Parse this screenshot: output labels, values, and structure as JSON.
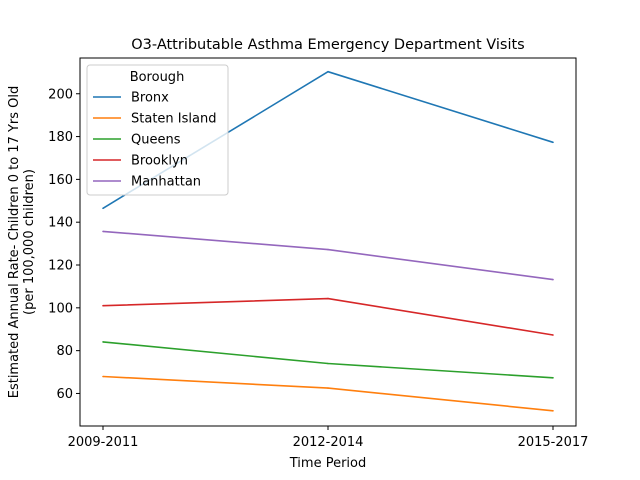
{
  "chart_data": {
    "type": "line",
    "title": "O3-Attributable Asthma Emergency Department Visits",
    "xlabel": "Time Period",
    "ylabel_line1": "Estimated Annual Rate- Children 0 to 17 Yrs Old",
    "ylabel_line2": "(per 100,000 children)",
    "categories": [
      "2009-2011",
      "2012-2014",
      "2015-2017"
    ],
    "yticks": [
      60,
      80,
      100,
      120,
      140,
      160,
      180,
      200
    ],
    "ylim": [
      44.8,
      216.7
    ],
    "grid": false,
    "legend": {
      "title": "Borough",
      "placement": "upper-left"
    },
    "series": [
      {
        "name": "Bronx",
        "color": "#1f77b4",
        "values": [
          146.5,
          210.3,
          177.3
        ]
      },
      {
        "name": "Staten Island",
        "color": "#ff7f0e",
        "values": [
          67.9,
          62.5,
          51.9
        ]
      },
      {
        "name": "Queens",
        "color": "#2ca02c",
        "values": [
          84.1,
          74.0,
          67.3
        ]
      },
      {
        "name": "Brooklyn",
        "color": "#d62728",
        "values": [
          101.0,
          104.3,
          87.3
        ]
      },
      {
        "name": "Manhattan",
        "color": "#9467bd",
        "values": [
          135.7,
          127.2,
          113.2
        ]
      }
    ]
  }
}
